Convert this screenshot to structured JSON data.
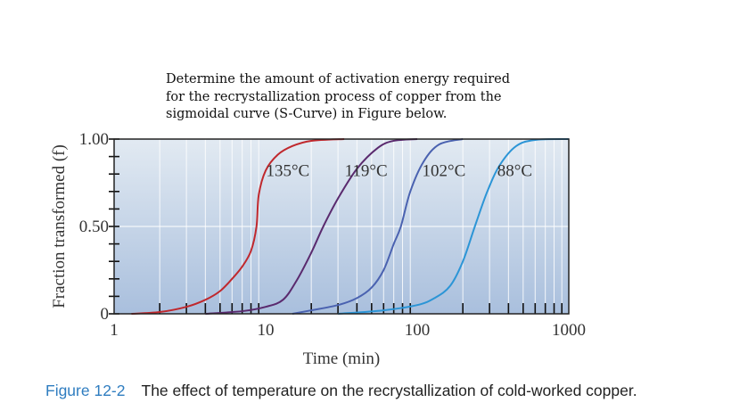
{
  "question": {
    "lines": [
      "Determine the amount of activation energy required",
      "for the recrystallization process of copper from the",
      "sigmoidal curve (S-Curve) in Figure below."
    ]
  },
  "chart_data": {
    "type": "line",
    "xlabel": "Time (min)",
    "ylabel": "Fraction transformed (f)",
    "xscale": "log",
    "xlim": [
      1,
      1000
    ],
    "ylim": [
      0,
      1
    ],
    "xticks": [
      1,
      10,
      100,
      1000
    ],
    "xtick_labels": [
      "1",
      "10",
      "100",
      "1000"
    ],
    "yticks": [
      0,
      0.5,
      1.0
    ],
    "ytick_labels": [
      "0",
      "0.50",
      "1.00"
    ],
    "grid": true,
    "series": [
      {
        "name": "135°C",
        "color": "#c0282d",
        "label_at": [
          14,
          0.82
        ],
        "points": [
          [
            1.3,
            0
          ],
          [
            2,
            0.01
          ],
          [
            3,
            0.04
          ],
          [
            4,
            0.08
          ],
          [
            5,
            0.13
          ],
          [
            6,
            0.2
          ],
          [
            7,
            0.27
          ],
          [
            8,
            0.36
          ],
          [
            8.7,
            0.5
          ],
          [
            9,
            0.68
          ],
          [
            10,
            0.82
          ],
          [
            12,
            0.91
          ],
          [
            15,
            0.96
          ],
          [
            20,
            0.99
          ],
          [
            33,
            1
          ]
        ]
      },
      {
        "name": "119°C",
        "color": "#5a2a6e",
        "label_at": [
          46,
          0.82
        ],
        "points": [
          [
            4,
            0
          ],
          [
            7,
            0.015
          ],
          [
            10,
            0.04
          ],
          [
            13,
            0.08
          ],
          [
            16,
            0.19
          ],
          [
            20,
            0.35
          ],
          [
            24,
            0.5
          ],
          [
            30,
            0.66
          ],
          [
            40,
            0.83
          ],
          [
            55,
            0.95
          ],
          [
            70,
            0.99
          ],
          [
            100,
            1
          ]
        ]
      },
      {
        "name": "102°C",
        "color": "#4a62b0",
        "label_at": [
          150,
          0.82
        ],
        "points": [
          [
            15,
            0
          ],
          [
            20,
            0.02
          ],
          [
            30,
            0.05
          ],
          [
            40,
            0.09
          ],
          [
            50,
            0.15
          ],
          [
            60,
            0.25
          ],
          [
            70,
            0.4
          ],
          [
            78,
            0.5
          ],
          [
            90,
            0.7
          ],
          [
            110,
            0.87
          ],
          [
            140,
            0.97
          ],
          [
            200,
            1
          ]
        ]
      },
      {
        "name": "88°C",
        "color": "#2c95d6",
        "label_at": [
          440,
          0.82
        ],
        "points": [
          [
            30,
            0
          ],
          [
            60,
            0.02
          ],
          [
            100,
            0.05
          ],
          [
            130,
            0.09
          ],
          [
            165,
            0.16
          ],
          [
            200,
            0.3
          ],
          [
            240,
            0.5
          ],
          [
            290,
            0.7
          ],
          [
            350,
            0.85
          ],
          [
            450,
            0.96
          ],
          [
            600,
            0.995
          ],
          [
            1000,
            1
          ]
        ]
      }
    ]
  },
  "caption": {
    "figure": "Figure 12-2",
    "text": "The effect of temperature on the recrystallization of cold-worked copper."
  }
}
